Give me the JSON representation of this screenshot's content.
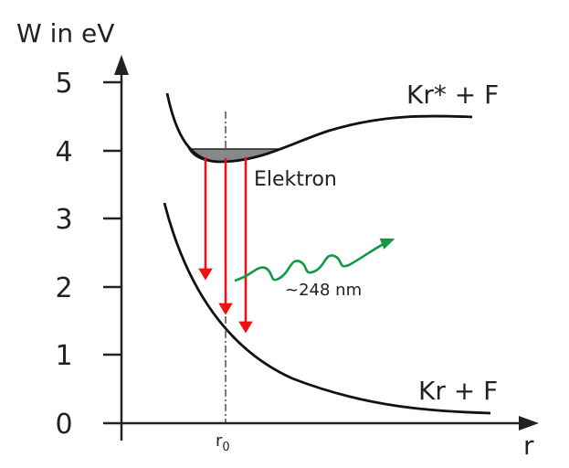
{
  "axis": {
    "y_label": "W in eV",
    "x_label": "r",
    "y_ticks": [
      "5",
      "4",
      "3",
      "2",
      "1",
      "0"
    ],
    "r0_label": "r",
    "r0_sub": "0"
  },
  "curves": {
    "upper_label": "Kr* + F",
    "lower_label": "Kr + F"
  },
  "annotations": {
    "electron": "Elektron",
    "wavelength": "~248 nm"
  },
  "colors": {
    "transition": "#ee1111",
    "photon": "#119944",
    "well_fill": "#888888"
  }
}
